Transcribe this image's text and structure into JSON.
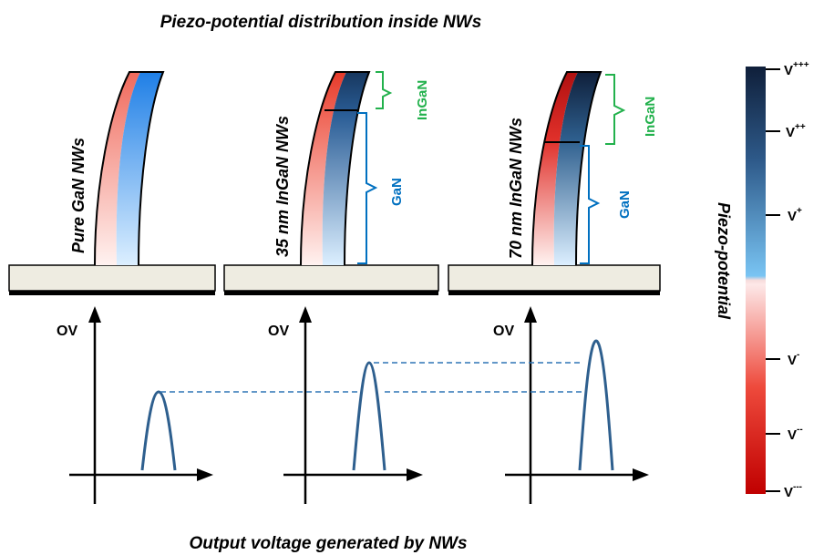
{
  "title": "Piezo-potential distribution inside NWs",
  "footer": "Output voltage generated by NWs",
  "panels": [
    {
      "label": "Pure GaN NWs"
    },
    {
      "label": "35 nm InGaN NWs",
      "top_bracket": "InGaN",
      "bottom_bracket": "GaN"
    },
    {
      "label": "70 nm InGaN NWs",
      "top_bracket": "InGaN",
      "bottom_bracket": "GaN"
    }
  ],
  "axis_label": "OV",
  "colorbar": {
    "title": "Piezo-potential",
    "ticks": [
      {
        "base": "V",
        "sup": "+++"
      },
      {
        "base": "V",
        "sup": "++"
      },
      {
        "base": "V",
        "sup": "+"
      },
      {
        "base": "V",
        "sup": "-"
      },
      {
        "base": "V",
        "sup": "--"
      },
      {
        "base": "V",
        "sup": "---"
      }
    ]
  },
  "colors": {
    "ingan_bracket": "#22b14c",
    "gan_bracket": "#0070c0",
    "peak_curve": "#2e5f8e",
    "substrate": "#eeece1"
  }
}
